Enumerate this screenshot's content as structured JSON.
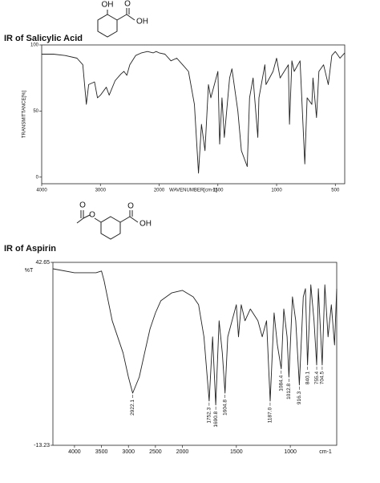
{
  "chart_data": [
    {
      "type": "line",
      "title": "IR of Salicylic Acid",
      "y_label": "TRANSMITTANCE[%]",
      "x_label": "WAVENUMBER[cm-1]",
      "xlim": [
        4000,
        420
      ],
      "x_break": 2000,
      "x_break_ratio": 2,
      "ylim": [
        -5,
        100
      ],
      "xticks": [
        4000,
        3000,
        2000,
        1500,
        1000,
        500
      ],
      "yticks": [
        0,
        50,
        100
      ],
      "series": [
        {
          "color": "#222",
          "x": [
            4000,
            3800,
            3600,
            3400,
            3300,
            3240,
            3200,
            3100,
            3050,
            3000,
            2900,
            2850,
            2750,
            2650,
            2600,
            2550,
            2500,
            2400,
            2300,
            2200,
            2100,
            2050,
            2000,
            1950,
            1900,
            1850,
            1800,
            1750,
            1700,
            1665,
            1640,
            1610,
            1580,
            1560,
            1500,
            1485,
            1465,
            1445,
            1400,
            1380,
            1330,
            1300,
            1250,
            1230,
            1200,
            1160,
            1150,
            1100,
            1090,
            1030,
            1000,
            970,
            900,
            890,
            870,
            850,
            800,
            760,
            740,
            700,
            690,
            660,
            640,
            600,
            560,
            530,
            500,
            460,
            420
          ],
          "values": [
            93,
            93,
            92,
            90,
            85,
            55,
            70,
            72,
            60,
            62,
            68,
            62,
            73,
            78,
            80,
            77,
            85,
            92,
            94,
            95,
            94,
            95,
            94,
            93,
            88,
            90,
            85,
            80,
            55,
            3,
            40,
            20,
            70,
            60,
            80,
            25,
            60,
            30,
            75,
            82,
            50,
            20,
            8,
            60,
            75,
            30,
            60,
            85,
            70,
            80,
            90,
            75,
            85,
            40,
            88,
            80,
            88,
            10,
            60,
            55,
            75,
            45,
            80,
            85,
            70,
            92,
            95,
            90,
            94
          ]
        }
      ]
    },
    {
      "type": "line",
      "title": "IR of Aspirin",
      "y_label": "%T",
      "x_label": "cm-1",
      "xlim": [
        4400,
        570
      ],
      "x_break": 2000,
      "x_break_ratio": 2,
      "ylim": [
        -13.23,
        42.65
      ],
      "xticks": [
        4000,
        3500,
        3000,
        2500,
        2000,
        1500,
        1000
      ],
      "yticks": [
        42.65,
        -13.23
      ],
      "series": [
        {
          "color": "#222",
          "x": [
            4400,
            4000,
            3800,
            3600,
            3500,
            3450,
            3300,
            3100,
            3000,
            2922.1,
            2800,
            2700,
            2600,
            2500,
            2400,
            2300,
            2200,
            2000,
            1900,
            1850,
            1800,
            1752.3,
            1720,
            1690.8,
            1660,
            1630,
            1604.8,
            1580,
            1500,
            1480,
            1455,
            1420,
            1370,
            1300,
            1260,
            1220,
            1187.0,
            1150,
            1120,
            1084.4,
            1060,
            1030,
            1012.8,
            980,
            950,
            916.3,
            880,
            860,
            840.1,
            810,
            780,
            755.4,
            740,
            704.5,
            680,
            650,
            620,
            590,
            570
          ],
          "values": [
            40.7,
            39.5,
            39.5,
            39.5,
            40.0,
            37.0,
            24.8,
            15.0,
            7.6,
            2.7,
            7.6,
            15.0,
            22.3,
            27.2,
            30.9,
            32.1,
            33.3,
            34.1,
            32.1,
            29.7,
            19.9,
            0.3,
            19.9,
            -0.9,
            24.8,
            15.0,
            2.7,
            19.9,
            29.7,
            19.9,
            29.7,
            24.8,
            28.4,
            24.8,
            19.9,
            24.8,
            0.3,
            27.2,
            17.4,
            10.1,
            28.4,
            19.9,
            7.6,
            32.1,
            24.8,
            5.2,
            32.1,
            34.6,
            11.3,
            35.8,
            24.8,
            11.3,
            34.6,
            11.3,
            35.8,
            19.9,
            29.7,
            17.4,
            34.6
          ]
        }
      ],
      "peaks": [
        {
          "x": 2922.1,
          "label": "2922.1"
        },
        {
          "x": 1752.3,
          "label": "1752.3"
        },
        {
          "x": 1690.8,
          "label": "1690.8"
        },
        {
          "x": 1604.8,
          "label": "1604.8"
        },
        {
          "x": 1187.0,
          "label": "1187.0"
        },
        {
          "x": 1084.4,
          "label": "1084.4"
        },
        {
          "x": 1012.8,
          "label": "1012.8"
        },
        {
          "x": 916.3,
          "label": "916.3"
        },
        {
          "x": 840.1,
          "label": "840.1"
        },
        {
          "x": 755.4,
          "label": "755.4"
        },
        {
          "x": 704.5,
          "label": "704.5"
        }
      ]
    }
  ],
  "structures": [
    {
      "labels": [
        "OH",
        "O",
        "OH"
      ]
    },
    {
      "labels": [
        "O",
        "O",
        "O",
        "OH"
      ]
    }
  ]
}
